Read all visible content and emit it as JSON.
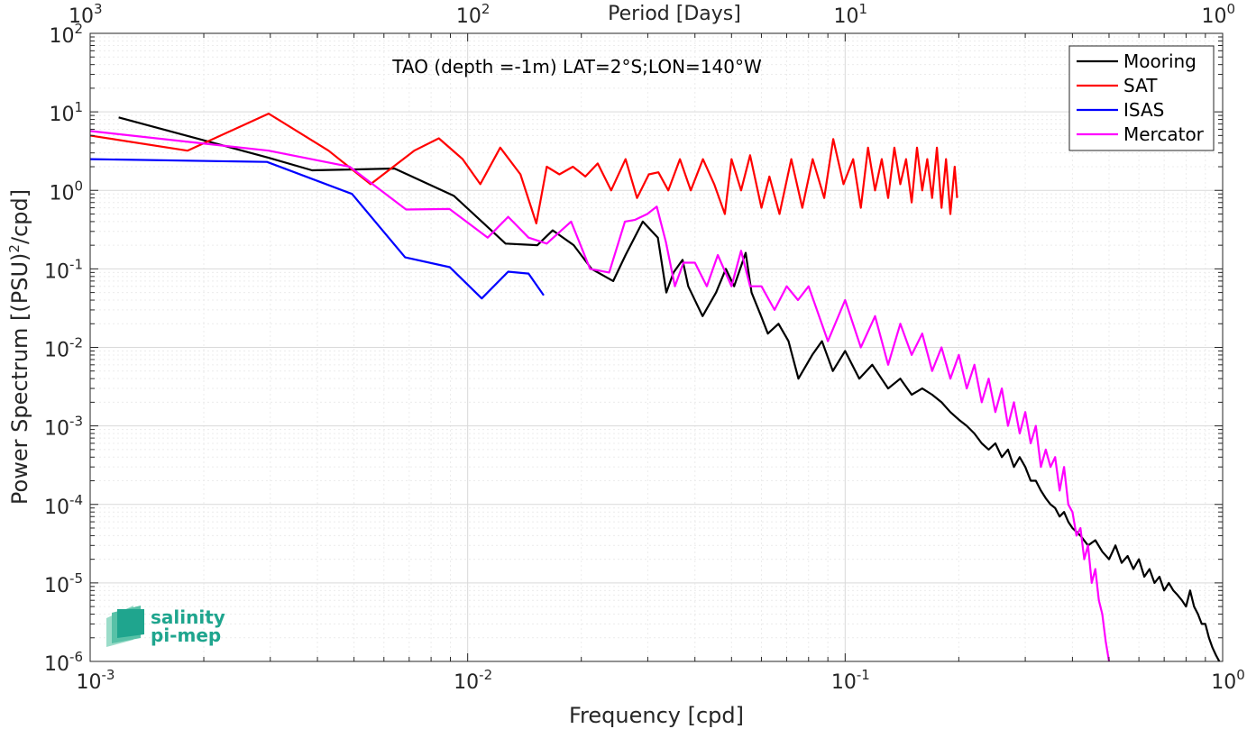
{
  "chart_data": {
    "type": "line",
    "title": "TAO (depth =-1m) LAT=2°S;LON=140°W",
    "xlabel": "Frequency [cpd]",
    "ylabel": "Power Spectrum [(PSU)",
    "ylabel_suffix": "/cpd]",
    "ylabel_sup": "2",
    "top_xlabel": "Period [Days]",
    "x_scale": "log",
    "y_scale": "log",
    "xlim": [
      0.001,
      1
    ],
    "ylim": [
      1e-06,
      100
    ],
    "grid": true,
    "legend_position": "top-right",
    "x_ticks": [
      {
        "base": "10",
        "exp": "-3"
      },
      {
        "base": "10",
        "exp": "-2"
      },
      {
        "base": "10",
        "exp": "-1"
      },
      {
        "base": "10",
        "exp": "0"
      }
    ],
    "top_ticks": [
      {
        "base": "10",
        "exp": "3"
      },
      {
        "base": "10",
        "exp": "2"
      },
      {
        "base": "10",
        "exp": "1"
      },
      {
        "base": "10",
        "exp": "0"
      }
    ],
    "y_ticks": [
      {
        "base": "10",
        "exp": "2"
      },
      {
        "base": "10",
        "exp": "1"
      },
      {
        "base": "10",
        "exp": "0"
      },
      {
        "base": "10",
        "exp": "-1"
      },
      {
        "base": "10",
        "exp": "-2"
      },
      {
        "base": "10",
        "exp": "-3"
      },
      {
        "base": "10",
        "exp": "-4"
      },
      {
        "base": "10",
        "exp": "-5"
      },
      {
        "base": "10",
        "exp": "-6"
      }
    ],
    "series": [
      {
        "name": "Mooring",
        "color": "#000000",
        "x": [
          0.00119,
          0.00297,
          0.00387,
          0.00507,
          0.0064,
          0.0092,
          0.0126,
          0.0153,
          0.0168,
          0.0191,
          0.0213,
          0.0243,
          0.0262,
          0.0291,
          0.0319,
          0.0336,
          0.0351,
          0.0371,
          0.0384,
          0.0419,
          0.0455,
          0.0483,
          0.0508,
          0.0545,
          0.0565,
          0.0599,
          0.0624,
          0.0666,
          0.0708,
          0.0752,
          0.0818,
          0.0868,
          0.0928,
          0.1,
          0.109,
          0.118,
          0.13,
          0.14,
          0.15,
          0.16,
          0.17,
          0.18,
          0.19,
          0.2,
          0.21,
          0.22,
          0.23,
          0.24,
          0.25,
          0.26,
          0.27,
          0.28,
          0.29,
          0.3,
          0.31,
          0.32,
          0.33,
          0.34,
          0.35,
          0.36,
          0.37,
          0.38,
          0.39,
          0.4,
          0.42,
          0.44,
          0.46,
          0.48,
          0.5,
          0.52,
          0.54,
          0.56,
          0.58,
          0.6,
          0.62,
          0.64,
          0.66,
          0.68,
          0.7,
          0.72,
          0.74,
          0.76,
          0.78,
          0.8,
          0.82,
          0.84,
          0.86,
          0.88,
          0.9,
          0.92,
          0.94,
          0.96,
          0.98
        ],
        "y": [
          8.5,
          2.6,
          1.8,
          1.85,
          1.9,
          0.85,
          0.21,
          0.2,
          0.31,
          0.2,
          0.1,
          0.07,
          0.15,
          0.4,
          0.25,
          0.05,
          0.09,
          0.13,
          0.06,
          0.025,
          0.05,
          0.1,
          0.06,
          0.16,
          0.05,
          0.025,
          0.015,
          0.02,
          0.012,
          0.004,
          0.008,
          0.012,
          0.005,
          0.009,
          0.004,
          0.006,
          0.003,
          0.004,
          0.0025,
          0.003,
          0.0025,
          0.002,
          0.0015,
          0.0012,
          0.001,
          0.0008,
          0.0006,
          0.0005,
          0.0006,
          0.0004,
          0.0005,
          0.0003,
          0.0004,
          0.0003,
          0.0002,
          0.0002,
          0.00015,
          0.00012,
          0.0001,
          9e-05,
          7e-05,
          8e-05,
          6e-05,
          5e-05,
          4e-05,
          3e-05,
          3.5e-05,
          2.5e-05,
          2e-05,
          3e-05,
          1.8e-05,
          2.2e-05,
          1.5e-05,
          2e-05,
          1.2e-05,
          1.5e-05,
          1e-05,
          1.2e-05,
          8e-06,
          1e-05,
          8e-06,
          7e-06,
          6e-06,
          5e-06,
          8e-06,
          5e-06,
          4e-06,
          3e-06,
          3e-06,
          2e-06,
          1.5e-06,
          1.2e-06,
          1e-06
        ]
      },
      {
        "name": "SAT",
        "color": "#ff0000",
        "x": [
          0.001,
          0.00181,
          0.00297,
          0.00428,
          0.00553,
          0.00722,
          0.00839,
          0.0097,
          0.0108,
          0.0122,
          0.0138,
          0.0152,
          0.0162,
          0.0175,
          0.019,
          0.0205,
          0.0221,
          0.024,
          0.0262,
          0.0281,
          0.0302,
          0.032,
          0.034,
          0.0365,
          0.039,
          0.042,
          0.045,
          0.048,
          0.05,
          0.053,
          0.056,
          0.06,
          0.063,
          0.067,
          0.072,
          0.077,
          0.082,
          0.088,
          0.093,
          0.099,
          0.105,
          0.11,
          0.115,
          0.12,
          0.125,
          0.13,
          0.135,
          0.14,
          0.145,
          0.15,
          0.155,
          0.16,
          0.165,
          0.17,
          0.175,
          0.18,
          0.185,
          0.19,
          0.195,
          0.198
        ],
        "y": [
          5,
          3.2,
          9.5,
          3.2,
          1.2,
          3.2,
          4.6,
          2.5,
          1.2,
          3.5,
          1.6,
          0.38,
          2.0,
          1.6,
          2.0,
          1.5,
          2.2,
          1.0,
          2.5,
          0.8,
          1.6,
          1.7,
          1.0,
          2.5,
          1.0,
          2.5,
          1.2,
          0.5,
          2.5,
          1.0,
          2.8,
          0.6,
          1.5,
          0.5,
          2.5,
          0.6,
          2.5,
          0.8,
          4.5,
          1.2,
          2.5,
          0.6,
          3.5,
          1.0,
          2.5,
          0.8,
          3.5,
          1.2,
          2.5,
          0.7,
          3.5,
          1.0,
          2.5,
          0.8,
          3.5,
          0.6,
          2.5,
          0.5,
          2.0,
          0.8
        ]
      },
      {
        "name": "ISAS",
        "color": "#0000ff",
        "x": [
          0.001,
          0.00294,
          0.00494,
          0.00683,
          0.00897,
          0.0109,
          0.0128,
          0.0145,
          0.0159
        ],
        "y": [
          2.5,
          2.3,
          0.9,
          0.14,
          0.105,
          0.042,
          0.092,
          0.087,
          0.046
        ]
      },
      {
        "name": "Mercator",
        "color": "#ff00ff",
        "x": [
          0.001,
          0.00297,
          0.00487,
          0.00687,
          0.00895,
          0.0113,
          0.0128,
          0.0145,
          0.0162,
          0.0188,
          0.0211,
          0.0237,
          0.0261,
          0.0277,
          0.0299,
          0.0317,
          0.0335,
          0.0354,
          0.0373,
          0.04,
          0.043,
          0.046,
          0.05,
          0.053,
          0.056,
          0.06,
          0.065,
          0.07,
          0.075,
          0.08,
          0.09,
          0.1,
          0.11,
          0.12,
          0.13,
          0.14,
          0.15,
          0.16,
          0.17,
          0.18,
          0.19,
          0.2,
          0.21,
          0.22,
          0.23,
          0.24,
          0.25,
          0.26,
          0.27,
          0.28,
          0.29,
          0.3,
          0.31,
          0.32,
          0.33,
          0.34,
          0.35,
          0.36,
          0.37,
          0.38,
          0.39,
          0.4,
          0.41,
          0.42,
          0.43,
          0.44,
          0.45,
          0.46,
          0.47,
          0.48,
          0.49,
          0.5
        ],
        "y": [
          5.7,
          3.2,
          2.0,
          0.57,
          0.58,
          0.25,
          0.46,
          0.25,
          0.21,
          0.4,
          0.1,
          0.09,
          0.4,
          0.42,
          0.5,
          0.62,
          0.22,
          0.06,
          0.12,
          0.12,
          0.06,
          0.15,
          0.06,
          0.17,
          0.06,
          0.06,
          0.03,
          0.06,
          0.04,
          0.06,
          0.012,
          0.04,
          0.01,
          0.025,
          0.006,
          0.02,
          0.008,
          0.015,
          0.005,
          0.01,
          0.004,
          0.008,
          0.003,
          0.006,
          0.002,
          0.004,
          0.0015,
          0.003,
          0.001,
          0.002,
          0.0008,
          0.0015,
          0.0006,
          0.001,
          0.0003,
          0.0005,
          0.0003,
          0.0004,
          0.00015,
          0.0003,
          0.0001,
          8e-05,
          4e-05,
          5e-05,
          2e-05,
          3e-05,
          1e-05,
          1.5e-05,
          6e-06,
          4e-06,
          1.8e-06,
          1e-06
        ]
      }
    ]
  },
  "logo": {
    "line1": "salinity",
    "line2": "pi-mep"
  }
}
